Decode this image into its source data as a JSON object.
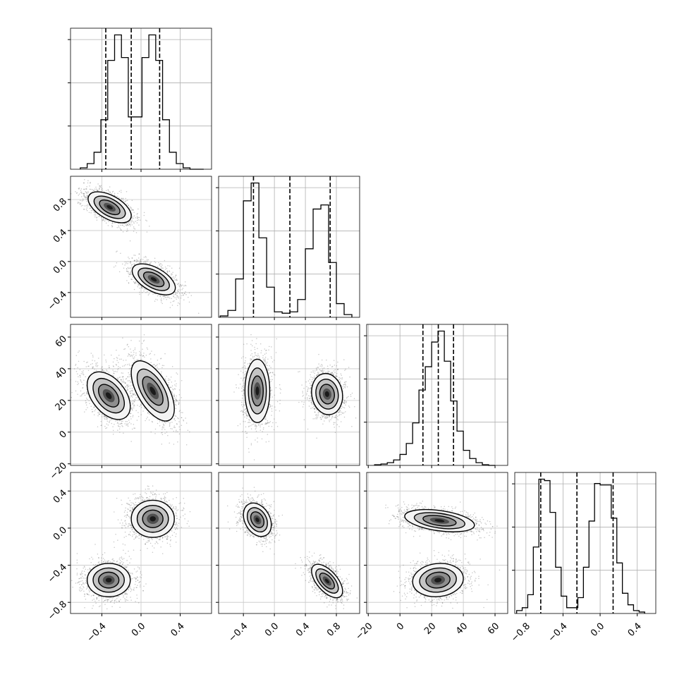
{
  "chart_data": {
    "type": "corner",
    "parameters": 4,
    "grid": true,
    "quantile_lines": "dashed",
    "ticks": [
      [
        -0.4,
        0.0,
        0.4
      ],
      [
        -0.4,
        0.0,
        0.4,
        0.8
      ],
      [
        -20,
        0,
        20,
        40,
        60
      ],
      [
        -0.8,
        -0.4,
        0.0,
        0.4
      ]
    ],
    "tick_labels": [
      [
        "−0.4",
        "0.0",
        "0.4"
      ],
      [
        "−0.4",
        "0.0",
        "0.4",
        "0.8"
      ],
      [
        "−20",
        "0",
        "20",
        "40",
        "60"
      ],
      [
        "−0.8",
        "−0.4",
        "0.0",
        "0.4"
      ]
    ],
    "ranges": [
      [
        -0.72,
        0.72
      ],
      [
        -0.72,
        1.1
      ],
      [
        -21,
        68
      ],
      [
        -0.92,
        0.6
      ]
    ],
    "quantiles": [
      [
        -0.36,
        -0.1,
        0.19
      ],
      [
        -0.27,
        0.2,
        0.72
      ],
      [
        14.5,
        24.2,
        33.8
      ],
      [
        -0.64,
        -0.25,
        0.14
      ]
    ],
    "histograms": [
      {
        "edges": [
          -0.62,
          -0.55,
          -0.48,
          -0.41,
          -0.34,
          -0.27,
          -0.2,
          -0.13,
          -0.06,
          0.01,
          0.08,
          0.15,
          0.22,
          0.29,
          0.36,
          0.43,
          0.5,
          0.57,
          0.64
        ],
        "heights": [
          0.01,
          0.04,
          0.12,
          0.35,
          0.77,
          0.95,
          0.79,
          0.37,
          0.37,
          0.79,
          0.95,
          0.77,
          0.35,
          0.12,
          0.04,
          0.01,
          0.0,
          0.0
        ]
      },
      {
        "edges": [
          -0.7,
          -0.6,
          -0.5,
          -0.4,
          -0.3,
          -0.2,
          -0.1,
          0.0,
          0.1,
          0.2,
          0.3,
          0.4,
          0.5,
          0.6,
          0.7,
          0.8,
          0.9,
          1.0
        ],
        "heights": [
          0.01,
          0.05,
          0.28,
          0.85,
          0.98,
          0.58,
          0.22,
          0.04,
          0.03,
          0.04,
          0.13,
          0.5,
          0.79,
          0.82,
          0.4,
          0.1,
          0.02
        ]
      },
      {
        "edges": [
          -16,
          -12,
          -8,
          -4,
          0,
          4,
          8,
          12,
          16,
          20,
          24,
          28,
          32,
          36,
          40,
          44,
          48,
          52,
          56,
          60
        ],
        "heights": [
          0.005,
          0.01,
          0.02,
          0.04,
          0.08,
          0.16,
          0.31,
          0.55,
          0.72,
          0.9,
          0.98,
          0.76,
          0.47,
          0.25,
          0.11,
          0.05,
          0.02,
          0.005,
          0.0
        ]
      },
      {
        "edges": [
          -0.9,
          -0.84,
          -0.78,
          -0.72,
          -0.66,
          -0.6,
          -0.54,
          -0.48,
          -0.42,
          -0.36,
          -0.3,
          -0.24,
          -0.18,
          -0.12,
          -0.06,
          0.0,
          0.06,
          0.12,
          0.18,
          0.24,
          0.3,
          0.36,
          0.42,
          0.48
        ],
        "heights": [
          0.02,
          0.04,
          0.13,
          0.46,
          0.93,
          0.92,
          0.7,
          0.32,
          0.12,
          0.04,
          0.04,
          0.11,
          0.32,
          0.64,
          0.9,
          0.89,
          0.89,
          0.66,
          0.35,
          0.14,
          0.06,
          0.02,
          0.01
        ]
      }
    ],
    "pairs": [
      {
        "x": 0,
        "y": 1,
        "modes": [
          {
            "mean": [
              -0.32,
              0.7
            ],
            "sd": [
              0.11,
              0.1
            ],
            "rho": -0.55
          },
          {
            "mean": [
              0.13,
              -0.23
            ],
            "sd": [
              0.11,
              0.1
            ],
            "rho": -0.55
          }
        ]
      },
      {
        "x": 0,
        "y": 2,
        "modes": [
          {
            "mean": [
              -0.33,
              23
            ],
            "sd": [
              0.11,
              7.5
            ],
            "rho": -0.45
          },
          {
            "mean": [
              0.12,
              26
            ],
            "sd": [
              0.11,
              9.5
            ],
            "rho": -0.6
          }
        ]
      },
      {
        "x": 1,
        "y": 2,
        "modes": [
          {
            "mean": [
              -0.22,
              26
            ],
            "sd": [
              0.08,
              10
            ],
            "rho": 0.0
          },
          {
            "mean": [
              0.68,
              24
            ],
            "sd": [
              0.1,
              6.5
            ],
            "rho": -0.1
          }
        ]
      },
      {
        "x": 0,
        "y": 3,
        "modes": [
          {
            "mean": [
              0.12,
              0.1
            ],
            "sd": [
              0.11,
              0.1
            ],
            "rho": 0.0
          },
          {
            "mean": [
              -0.33,
              -0.56
            ],
            "sd": [
              0.11,
              0.09
            ],
            "rho": 0.0
          }
        ]
      },
      {
        "x": 1,
        "y": 3,
        "modes": [
          {
            "mean": [
              -0.22,
              0.09
            ],
            "sd": [
              0.09,
              0.09
            ],
            "rho": -0.3
          },
          {
            "mean": [
              0.68,
              -0.57
            ],
            "sd": [
              0.1,
              0.09
            ],
            "rho": -0.6
          }
        ]
      },
      {
        "x": 2,
        "y": 3,
        "modes": [
          {
            "mean": [
              25,
              0.08
            ],
            "sd": [
              11,
              0.06
            ],
            "rho": -0.4
          },
          {
            "mean": [
              24,
              -0.56
            ],
            "sd": [
              8,
              0.09
            ],
            "rho": 0.1
          }
        ]
      }
    ]
  }
}
